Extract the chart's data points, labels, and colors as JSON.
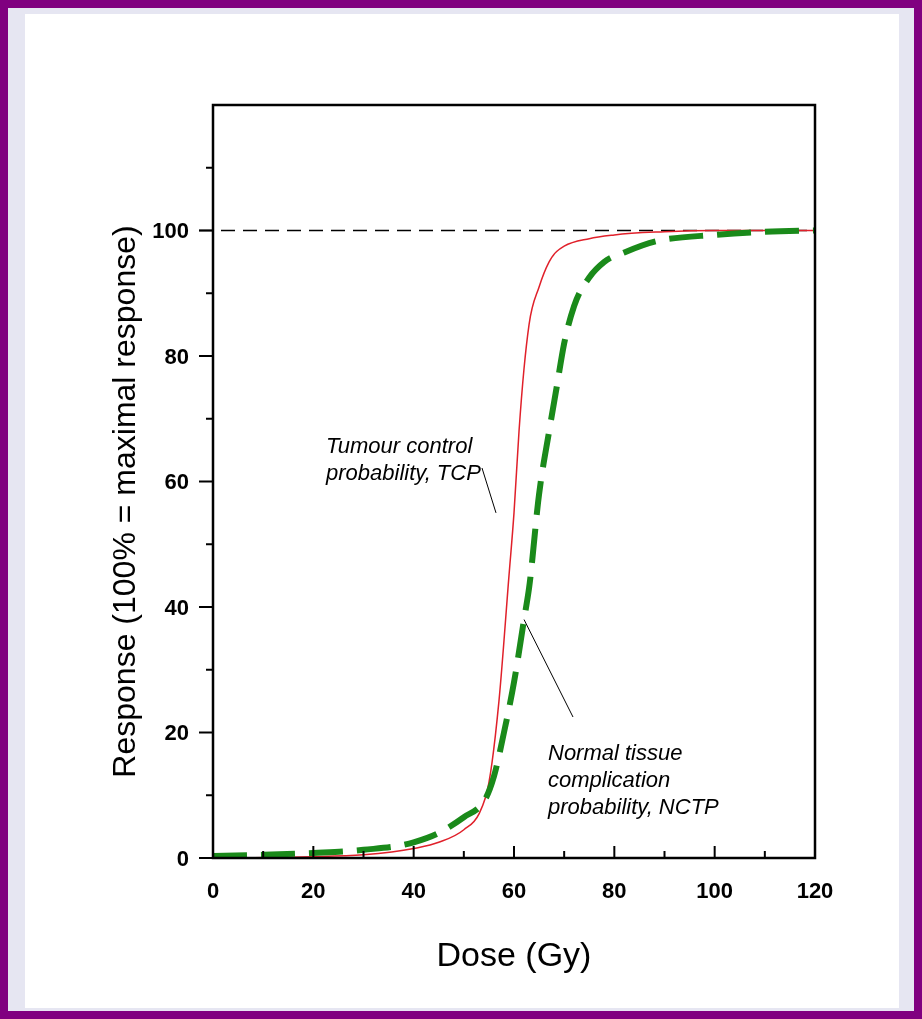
{
  "chart_data": {
    "type": "line",
    "xlabel": "Dose (Gy)",
    "ylabel": "Response (100% = maximal response)",
    "xlim": [
      0,
      120
    ],
    "ylim": [
      0,
      120
    ],
    "xticks": [
      0,
      {
        "value": 10,
        "label": null
      },
      20,
      {
        "value": 30,
        "label": null
      },
      40,
      {
        "value": 50,
        "label": null
      },
      60,
      {
        "value": 70,
        "label": null
      },
      80,
      {
        "value": 90,
        "label": null
      },
      100,
      {
        "value": 110,
        "label": null
      },
      120
    ],
    "yticks": [
      0,
      {
        "value": 10,
        "label": null
      },
      20,
      {
        "value": 30,
        "label": null
      },
      40,
      {
        "value": 50,
        "label": null
      },
      60,
      {
        "value": 70,
        "label": null
      },
      80,
      {
        "value": 90,
        "label": null
      },
      100,
      {
        "value": 110,
        "label": null
      }
    ],
    "grid": false,
    "ref_lines": [
      {
        "axis": "y",
        "value": 100,
        "color": "#000000",
        "line_style": "dashed"
      }
    ],
    "series": [
      {
        "name": "Tumour control probability, TCP",
        "color": "#e0202a",
        "line_style": "solid",
        "x": [
          0,
          20,
          30,
          40,
          45,
          50,
          53,
          55,
          57,
          59,
          60,
          61,
          62,
          63,
          65,
          67,
          70,
          75,
          80,
          90,
          100,
          120
        ],
        "values": [
          0,
          0.2,
          0.5,
          1.5,
          2.5,
          4.5,
          7,
          12,
          25,
          45,
          55,
          68,
          78,
          85,
          91,
          95,
          97.5,
          98.7,
          99.3,
          99.8,
          100,
          100
        ]
      },
      {
        "name": "Normal tissue complication probability, NCTP",
        "color": "#1a8a1a",
        "line_style": "dashed",
        "x": [
          0,
          10,
          20,
          30,
          40,
          45,
          50,
          54,
          56,
          58,
          60,
          62,
          63,
          65,
          67,
          68.5,
          70,
          72,
          75,
          78,
          82,
          89,
          100,
          110,
          120
        ],
        "values": [
          0.3,
          0.5,
          0.8,
          1.3,
          2.5,
          4,
          6.5,
          9,
          13,
          20,
          28,
          38,
          43,
          58,
          68,
          75,
          82,
          88,
          92.5,
          95,
          96.5,
          98.4,
          99.3,
          99.8,
          100
        ]
      }
    ]
  }
}
